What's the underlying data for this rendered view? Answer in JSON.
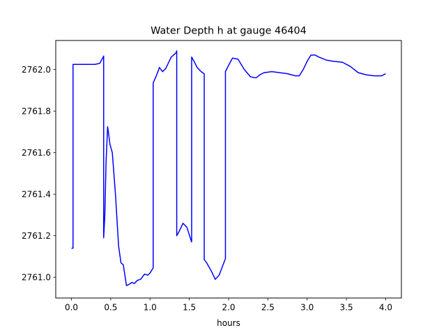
{
  "chart_data": {
    "type": "line",
    "title": "Water Depth h at gauge 46404",
    "xlabel": "hours",
    "ylabel": "",
    "xlim": [
      -0.2,
      4.2
    ],
    "ylim": [
      2760.9,
      2762.14
    ],
    "xticks": [
      0.0,
      0.5,
      1.0,
      1.5,
      2.0,
      2.5,
      3.0,
      3.5,
      4.0
    ],
    "xtick_labels": [
      "0.0",
      "0.5",
      "1.0",
      "1.5",
      "2.0",
      "2.5",
      "3.0",
      "3.5",
      "4.0"
    ],
    "yticks": [
      2761.0,
      2761.2,
      2761.4,
      2761.6,
      2761.8,
      2762.0
    ],
    "ytick_labels": [
      "2761.0",
      "2761.2",
      "2761.4",
      "2761.6",
      "2761.8",
      "2762.0"
    ],
    "grid": false,
    "legend": false,
    "series": [
      {
        "color": "#0000ff",
        "x": [
          0.0,
          0.02,
          0.02,
          0.1,
          0.2,
          0.3,
          0.36,
          0.39,
          0.41,
          0.41,
          0.425,
          0.44,
          0.46,
          0.47,
          0.49,
          0.52,
          0.56,
          0.6,
          0.63,
          0.66,
          0.7,
          0.73,
          0.77,
          0.8,
          0.84,
          0.88,
          0.93,
          0.97,
          1.0,
          1.04,
          1.04,
          1.08,
          1.12,
          1.16,
          1.2,
          1.27,
          1.33,
          1.34,
          1.34,
          1.37,
          1.42,
          1.47,
          1.52,
          1.53,
          1.53,
          1.56,
          1.6,
          1.65,
          1.69,
          1.69,
          1.72,
          1.78,
          1.83,
          1.88,
          1.93,
          1.96,
          1.96,
          2.0,
          2.05,
          2.12,
          2.2,
          2.28,
          2.35,
          2.4,
          2.45,
          2.55,
          2.65,
          2.75,
          2.85,
          2.9,
          2.95,
          3.0,
          3.05,
          3.1,
          3.15,
          3.25,
          3.33,
          3.45,
          3.55,
          3.65,
          3.75,
          3.85,
          3.95,
          4.0
        ],
        "y": [
          2761.14,
          2761.14,
          2762.025,
          2762.025,
          2762.025,
          2762.025,
          2762.03,
          2762.05,
          2762.065,
          2761.19,
          2761.3,
          2761.55,
          2761.725,
          2761.7,
          2761.64,
          2761.6,
          2761.4,
          2761.15,
          2761.07,
          2761.06,
          2760.96,
          2760.965,
          2760.975,
          2760.97,
          2760.985,
          2760.99,
          2761.015,
          2761.01,
          2761.02,
          2761.045,
          2761.935,
          2761.97,
          2762.01,
          2761.99,
          2762.005,
          2762.06,
          2762.08,
          2762.09,
          2761.2,
          2761.22,
          2761.26,
          2761.24,
          2761.18,
          2761.17,
          2762.06,
          2762.04,
          2762.01,
          2761.99,
          2761.98,
          2761.085,
          2761.07,
          2761.03,
          2760.99,
          2761.01,
          2761.06,
          2761.09,
          2761.99,
          2762.02,
          2762.055,
          2762.05,
          2762.0,
          2761.965,
          2761.96,
          2761.975,
          2761.985,
          2761.99,
          2761.985,
          2761.98,
          2761.97,
          2761.97,
          2762.0,
          2762.04,
          2762.07,
          2762.07,
          2762.06,
          2762.045,
          2762.04,
          2762.035,
          2762.015,
          2761.985,
          2761.975,
          2761.97,
          2761.97,
          2761.98
        ]
      }
    ]
  }
}
